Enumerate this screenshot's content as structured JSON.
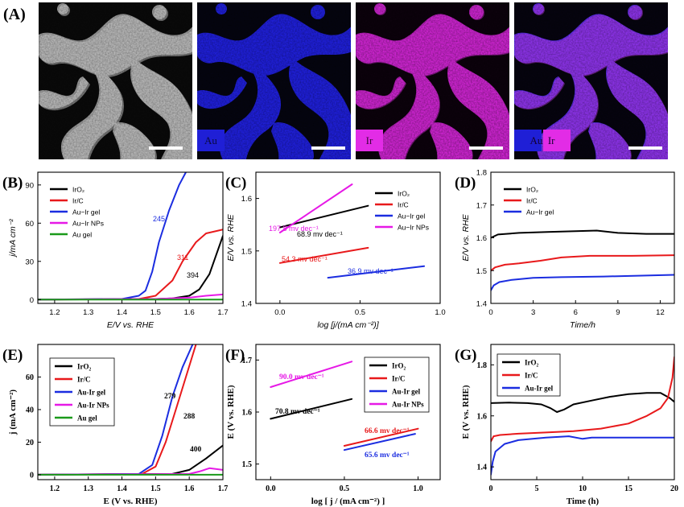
{
  "figure": {
    "panel_letters": [
      "(A)",
      "(B)",
      "(C)",
      "(D)",
      "(E)",
      "(F)",
      "(G)"
    ],
    "micrographs": [
      {
        "label": ""
      },
      {
        "label": "Au"
      },
      {
        "label": "Ir"
      },
      {
        "label": "Au  Ir"
      }
    ],
    "colors": {
      "black": "#000000",
      "red": "#e8191b",
      "blue": "#1b2de0",
      "magenta": "#e619e6",
      "green": "#1a9a1a",
      "map_au": "#1f1fd6",
      "map_ir": "#e22ce6"
    }
  },
  "chart_data": [
    {
      "panel": "(B)",
      "type": "line",
      "xlabel": "E/V vs. RHE",
      "ylabel": "j/mA cm⁻²",
      "xlim": [
        1.15,
        1.7
      ],
      "ylim": [
        -3,
        100
      ],
      "xticks": [
        "1.2",
        "1.3",
        "1.4",
        "1.5",
        "1.6",
        "1.7"
      ],
      "yticks": [
        "0",
        "30",
        "60",
        "90"
      ],
      "legend": [
        "IrO₂",
        "Ir/C",
        "Au−Ir gel",
        "Au−Ir NPs",
        "Au gel"
      ],
      "legend_position": "top-left",
      "series": [
        {
          "name": "IrO₂",
          "color": "#000000",
          "x": [
            1.15,
            1.5,
            1.55,
            1.6,
            1.63,
            1.66,
            1.68,
            1.7
          ],
          "y": [
            0,
            0.5,
            1,
            3,
            8,
            20,
            35,
            50
          ]
        },
        {
          "name": "Ir/C",
          "color": "#e8191b",
          "x": [
            1.15,
            1.45,
            1.5,
            1.55,
            1.58,
            1.62,
            1.65,
            1.7
          ],
          "y": [
            0,
            0.5,
            3,
            15,
            30,
            45,
            52,
            55
          ]
        },
        {
          "name": "Au−Ir gel",
          "color": "#1b2de0",
          "x": [
            1.15,
            1.4,
            1.45,
            1.47,
            1.49,
            1.51,
            1.54,
            1.57,
            1.59
          ],
          "y": [
            0,
            0.5,
            3,
            7,
            22,
            45,
            70,
            90,
            100
          ]
        },
        {
          "name": "Au−Ir NPs",
          "color": "#e619e6",
          "x": [
            1.15,
            1.5,
            1.6,
            1.65,
            1.7
          ],
          "y": [
            0,
            0.5,
            1.5,
            3,
            4
          ]
        },
        {
          "name": "Au gel",
          "color": "#1a9a1a",
          "x": [
            1.15,
            1.7
          ],
          "y": [
            0,
            0
          ]
        }
      ],
      "annotations": [
        {
          "text": "245",
          "x": 1.41,
          "y": 63,
          "color": "#1b2de0"
        },
        {
          "text": "311",
          "x": 1.59,
          "y": 34,
          "color": "#e8191b"
        },
        {
          "text": "394",
          "x": 1.61,
          "y": 20,
          "color": "#000000"
        }
      ]
    },
    {
      "panel": "(C)",
      "type": "line",
      "xlabel": "log [j/(mA cm⁻²)]",
      "ylabel": "E/V vs. RHE",
      "xlim": [
        -0.15,
        1.0
      ],
      "ylim": [
        1.4,
        1.65
      ],
      "xticks": [
        "0.0",
        "0.5",
        "1.0"
      ],
      "yticks": [
        "1.4",
        "1.5",
        "1.6"
      ],
      "legend": [
        "IrO₂",
        "Ir/C",
        "Au−Ir gel",
        "Au−Ir NPs"
      ],
      "legend_position": "top-right",
      "series": [
        {
          "name": "IrO₂",
          "color": "#000000",
          "x": [
            0.0,
            0.55
          ],
          "y": [
            1.545,
            1.586
          ]
        },
        {
          "name": "Ir/C",
          "color": "#e8191b",
          "x": [
            0.0,
            0.55
          ],
          "y": [
            1.477,
            1.506
          ]
        },
        {
          "name": "Au−Ir gel",
          "color": "#1b2de0",
          "x": [
            0.3,
            0.9
          ],
          "y": [
            1.449,
            1.471
          ]
        },
        {
          "name": "Au−Ir NPs",
          "color": "#e619e6",
          "x": [
            0.0,
            0.45
          ],
          "y": [
            1.535,
            1.627
          ]
        }
      ],
      "annotations": [
        {
          "text": "197.8 mv dec⁻¹",
          "x": -0.1,
          "y": 1.58,
          "color": "#e619e6"
        },
        {
          "text": "68.9 mv dec⁻¹",
          "x": 0.05,
          "y": 1.55,
          "color": "#000000"
        },
        {
          "text": "54.3 mv dec⁻¹",
          "x": 0.02,
          "y": 1.495,
          "color": "#e8191b"
        },
        {
          "text": "36.9 mv dec⁻¹",
          "x": 0.5,
          "y": 1.475,
          "color": "#1b2de0"
        }
      ]
    },
    {
      "panel": "(D)",
      "type": "line",
      "xlabel": "Time/h",
      "ylabel": "E/V vs. RHE",
      "xlim": [
        0,
        13
      ],
      "ylim": [
        1.4,
        1.8
      ],
      "xticks": [
        "0",
        "3",
        "6",
        "9",
        "12"
      ],
      "yticks": [
        "1.4",
        "1.5",
        "1.6",
        "1.7",
        "1.8"
      ],
      "legend": [
        "IrO₂",
        "Ir/C",
        "Au−Ir gel"
      ],
      "legend_position": "top-left",
      "series": [
        {
          "name": "IrO₂",
          "color": "#000000",
          "x": [
            0,
            0.5,
            2,
            4,
            6,
            7.5,
            9,
            11,
            13
          ],
          "y": [
            1.6,
            1.61,
            1.615,
            1.618,
            1.62,
            1.622,
            1.615,
            1.612,
            1.612
          ]
        },
        {
          "name": "Ir/C",
          "color": "#e8191b",
          "x": [
            0,
            0.3,
            1,
            2,
            3.5,
            5,
            7,
            10,
            13
          ],
          "y": [
            1.5,
            1.51,
            1.518,
            1.522,
            1.53,
            1.54,
            1.545,
            1.545,
            1.547
          ]
        },
        {
          "name": "Au−Ir gel",
          "color": "#1b2de0",
          "x": [
            0,
            0.2,
            0.6,
            1.5,
            3,
            5,
            8,
            11,
            13
          ],
          "y": [
            1.44,
            1.455,
            1.465,
            1.472,
            1.478,
            1.48,
            1.482,
            1.485,
            1.487
          ]
        }
      ]
    },
    {
      "panel": "(E)",
      "type": "line",
      "xlabel": "E (V vs. RHE)",
      "ylabel": "j (mA cm⁻²)",
      "xlim": [
        1.15,
        1.7
      ],
      "ylim": [
        -3,
        80
      ],
      "xticks": [
        "1.2",
        "1.3",
        "1.4",
        "1.5",
        "1.6",
        "1.7"
      ],
      "yticks": [
        "0",
        "20",
        "40",
        "60"
      ],
      "legend": [
        "IrO₂",
        "Ir/C",
        "Au-Ir gel",
        "Au-Ir NPs",
        "Au gel"
      ],
      "legend_position": "top-left",
      "series": [
        {
          "name": "IrO₂",
          "color": "#000000",
          "x": [
            1.15,
            1.55,
            1.6,
            1.65,
            1.7
          ],
          "y": [
            0,
            0.5,
            3,
            10,
            18
          ]
        },
        {
          "name": "Ir/C",
          "color": "#e8191b",
          "x": [
            1.15,
            1.46,
            1.5,
            1.53,
            1.56,
            1.59,
            1.62
          ],
          "y": [
            0,
            0.5,
            5,
            20,
            40,
            60,
            80
          ]
        },
        {
          "name": "Au-Ir gel",
          "color": "#1b2de0",
          "x": [
            1.15,
            1.45,
            1.49,
            1.52,
            1.55,
            1.58,
            1.61
          ],
          "y": [
            0,
            0.5,
            6,
            24,
            48,
            66,
            80
          ]
        },
        {
          "name": "Au-Ir NPs",
          "color": "#e619e6",
          "x": [
            1.15,
            1.6,
            1.63,
            1.66,
            1.7
          ],
          "y": [
            0,
            0.5,
            2,
            4,
            3
          ]
        },
        {
          "name": "Au gel",
          "color": "#1a9a1a",
          "x": [
            1.15,
            1.7
          ],
          "y": [
            0,
            0
          ]
        }
      ],
      "annotations": [
        {
          "text": "279",
          "x": 1.49,
          "y": 43,
          "color": "#000000"
        },
        {
          "text": "288",
          "x": 1.57,
          "y": 33,
          "color": "#000000"
        },
        {
          "text": "400",
          "x": 1.63,
          "y": 13,
          "color": "#000000"
        }
      ]
    },
    {
      "panel": "(F)",
      "type": "line",
      "xlabel": "log [ j / (mA cm⁻²) ]",
      "ylabel": "E (V vs. RHE)",
      "xlim": [
        -0.1,
        1.15
      ],
      "ylim": [
        1.47,
        1.73
      ],
      "xticks": [
        "0.0",
        "0.5",
        "1.0"
      ],
      "yticks": [
        "1.5",
        "1.6",
        "1.7"
      ],
      "legend": [
        "IrO₂",
        "Ir/C",
        "Au-Ir gel",
        "Au-Ir NPs"
      ],
      "legend_position": "top-right",
      "series": [
        {
          "name": "IrO₂",
          "color": "#000000",
          "x": [
            0.0,
            0.55
          ],
          "y": [
            1.587,
            1.625
          ]
        },
        {
          "name": "Ir/C",
          "color": "#e8191b",
          "x": [
            0.5,
            1.0
          ],
          "y": [
            1.535,
            1.568
          ]
        },
        {
          "name": "Au-Ir gel",
          "color": "#1b2de0",
          "x": [
            0.5,
            0.98
          ],
          "y": [
            1.527,
            1.558
          ]
        },
        {
          "name": "Au-Ir NPs",
          "color": "#e619e6",
          "x": [
            0.0,
            0.55
          ],
          "y": [
            1.648,
            1.697
          ]
        }
      ],
      "annotations": [
        {
          "text": "90.0 mv dec⁻¹",
          "x": 0.0,
          "y": 1.672,
          "color": "#e619e6"
        },
        {
          "text": "70.8 mv dec⁻¹",
          "x": 0.0,
          "y": 1.605,
          "color": "#000000"
        },
        {
          "text": "66.6 mv dec⁻¹",
          "x": 0.62,
          "y": 1.556,
          "color": "#e8191b"
        },
        {
          "text": "65.6 mv dec⁻¹",
          "x": 0.62,
          "y": 1.512,
          "color": "#1b2de0"
        }
      ]
    },
    {
      "panel": "(G)",
      "type": "line",
      "xlabel": "Time (h)",
      "ylabel": "E (V vs. RHE)",
      "xlim": [
        0,
        20
      ],
      "ylim": [
        1.35,
        1.88
      ],
      "xticks": [
        "0",
        "5",
        "10",
        "15",
        "20"
      ],
      "yticks": [
        "1.4",
        "1.6",
        "1.8"
      ],
      "legend": [
        "IrO₂",
        "Ir/C",
        "Au-Ir gel"
      ],
      "legend_position": "top-left",
      "series": [
        {
          "name": "IrO₂",
          "color": "#000000",
          "x": [
            0,
            2,
            4,
            5.5,
            6.5,
            7.2,
            8,
            9,
            11,
            13,
            15,
            17,
            18.5,
            19.5,
            20
          ],
          "y": [
            1.65,
            1.652,
            1.65,
            1.645,
            1.63,
            1.615,
            1.625,
            1.645,
            1.66,
            1.675,
            1.685,
            1.69,
            1.69,
            1.67,
            1.655
          ]
        },
        {
          "name": "Ir/C",
          "color": "#e8191b",
          "x": [
            0,
            0.3,
            1,
            3,
            6,
            9,
            12,
            15,
            17,
            18.5,
            19.3,
            19.8,
            20
          ],
          "y": [
            1.5,
            1.52,
            1.525,
            1.53,
            1.535,
            1.54,
            1.55,
            1.57,
            1.6,
            1.63,
            1.67,
            1.75,
            1.83
          ]
        },
        {
          "name": "Au-Ir gel",
          "color": "#1b2de0",
          "x": [
            0,
            0.2,
            0.5,
            1.5,
            3,
            6,
            8.5,
            10,
            11,
            15,
            20
          ],
          "y": [
            1.37,
            1.42,
            1.46,
            1.49,
            1.505,
            1.515,
            1.52,
            1.51,
            1.515,
            1.515,
            1.515
          ]
        }
      ]
    }
  ]
}
